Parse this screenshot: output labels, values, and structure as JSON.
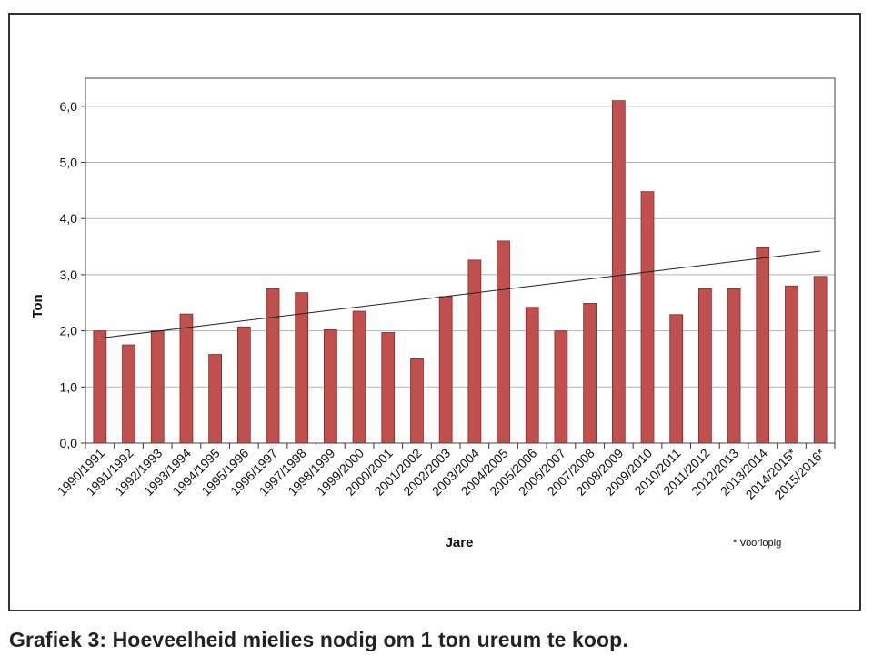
{
  "caption": "Grafiek 3: Hoeveelheid mielies nodig om 1 ton ureum te koop.",
  "chart_data": {
    "type": "bar",
    "title": "",
    "xlabel": "Jare",
    "ylabel": "Ton",
    "ylim": [
      0,
      6.5
    ],
    "yticks": [
      "0,0",
      "1,0",
      "2,0",
      "3,0",
      "4,0",
      "5,0",
      "6,0"
    ],
    "grid": true,
    "legend": "none",
    "footnote": "* Voorlopig",
    "bar_color": "#c0504d",
    "categories": [
      "1990/1991",
      "1991/1992",
      "1992/1993",
      "1993/1994",
      "1994/1995",
      "1995/1996",
      "1996/1997",
      "1997/1998",
      "1998/1999",
      "1999/2000",
      "2000/2001",
      "2001/2002",
      "2002/2003",
      "2003/2004",
      "2004/2005",
      "2005/2006",
      "2006/2007",
      "2007/2008",
      "2008/2009",
      "2009/2010",
      "2010/2011",
      "2011/2012",
      "2012/2013",
      "2013/2014",
      "2014/2015*",
      "2015/2016*"
    ],
    "values": [
      2.0,
      1.75,
      2.0,
      2.3,
      1.58,
      2.07,
      2.75,
      2.68,
      2.02,
      2.35,
      1.97,
      1.5,
      2.61,
      3.26,
      3.6,
      2.42,
      2.0,
      2.49,
      6.1,
      4.48,
      2.29,
      2.75,
      2.75,
      3.48,
      2.8,
      2.97
    ],
    "trendline": {
      "start": 1.87,
      "end": 3.42
    }
  }
}
